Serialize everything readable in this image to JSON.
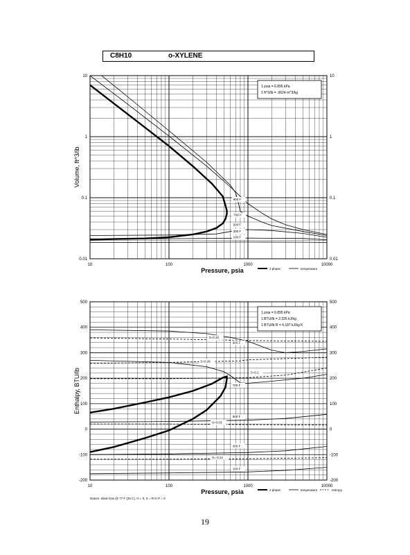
{
  "header": {
    "formula": "C8H10",
    "compound": "o-XYLENE"
  },
  "page_number": "19",
  "chart_data": [
    {
      "type": "line",
      "x_scale": "log",
      "y_scale": "log",
      "xlabel": "Pressure,  psia",
      "ylabel": "Volume, ft^3/lb",
      "xlim": [
        10,
        10000
      ],
      "ylim": [
        0.01,
        10
      ],
      "x_ticks": [
        "10",
        "100",
        "1000",
        "10000"
      ],
      "y_ticks": [
        "0.01",
        "0.1",
        "1",
        "10"
      ],
      "grid": true,
      "info_box": [
        "1 psia = 6.895 kPa",
        "1 ft^3/lb = .0624 m^3/kg"
      ],
      "legend": [
        {
          "label": "2 phase",
          "style": "thick"
        },
        {
          "label": "temperature",
          "style": "thin"
        }
      ],
      "series": [
        {
          "name": "2 phase",
          "kind": "thick",
          "x": [
            10,
            20,
            50,
            100,
            200,
            350,
            480,
            540,
            541,
            520,
            480,
            400,
            300,
            200,
            100,
            50,
            20,
            10
          ],
          "y": [
            7.0,
            3.5,
            1.4,
            0.7,
            0.33,
            0.17,
            0.105,
            0.062,
            0.055,
            0.045,
            0.038,
            0.032,
            0.028,
            0.025,
            0.0225,
            0.0215,
            0.021,
            0.0205
          ]
        },
        {
          "name": "900 F",
          "x": [
            10,
            30,
            100,
            300,
            600,
            800,
            1000,
            1500,
            2000,
            3000,
            5000,
            10000
          ],
          "y": [
            10,
            3.4,
            1.02,
            0.33,
            0.15,
            0.105,
            0.08,
            0.056,
            0.045,
            0.036,
            0.03,
            0.025
          ]
        },
        {
          "name": "700 F",
          "x": [
            14,
            30,
            100,
            300,
            600,
            700,
            760,
            800,
            1000,
            1500,
            2000,
            5000,
            10000
          ],
          "y": [
            10,
            4.5,
            1.25,
            0.38,
            0.16,
            0.12,
            0.08,
            0.06,
            0.05,
            0.04,
            0.035,
            0.028,
            0.024
          ]
        },
        {
          "name": "500 F",
          "x": [
            10,
            100,
            400,
            600,
            1000,
            2000,
            5000,
            10000
          ],
          "y": [
            0.024,
            0.0245,
            0.0255,
            0.028,
            0.03,
            0.029,
            0.026,
            0.0225
          ]
        },
        {
          "name": "300 F",
          "x": [
            10,
            100,
            1000,
            5000,
            10000
          ],
          "y": [
            0.0212,
            0.0213,
            0.0218,
            0.0215,
            0.0205
          ]
        },
        {
          "name": "100 F",
          "x": [
            10,
            100,
            1000,
            5000,
            10000
          ],
          "y": [
            0.0185,
            0.0186,
            0.0188,
            0.0187,
            0.0185
          ]
        }
      ]
    },
    {
      "type": "line",
      "x_scale": "log",
      "y_scale": "linear",
      "xlabel": "Pressure,  psia",
      "ylabel": "Enthalpy, BTU/lb",
      "xlim": [
        10,
        10000
      ],
      "ylim": [
        -200,
        500
      ],
      "x_ticks": [
        "10",
        "100",
        "1000",
        "10000"
      ],
      "y_ticks": [
        "-200",
        "-100",
        "0",
        "100",
        "200",
        "300",
        "400",
        "500"
      ],
      "grid": true,
      "info_box": [
        "1 psia = 6.895 kPa",
        "1 BTU/lb = 2.326 kJ/kg",
        "1 BTU/lb R = 4.187 kJ/kg K"
      ],
      "datum": "Datum: Ideal Gas @ 77 F (25 C),  H = 0,  S = R ln P = 0",
      "legend": [
        {
          "label": "2 phase",
          "style": "thick"
        },
        {
          "label": "temperature",
          "style": "thin"
        },
        {
          "label": "entropy",
          "style": "dashed"
        }
      ],
      "series": [
        {
          "name": "2 phase",
          "kind": "thick",
          "x": [
            10,
            20,
            50,
            100,
            200,
            350,
            480,
            540,
            541,
            520,
            450,
            300,
            200,
            100,
            50,
            20,
            10
          ],
          "y": [
            65,
            80,
            105,
            125,
            150,
            178,
            202,
            207,
            198,
            165,
            130,
            75,
            40,
            -5,
            -35,
            -70,
            -90
          ]
        },
        {
          "name": "900 F",
          "x": [
            10,
            100,
            300,
            600,
            1000,
            2000,
            3000,
            5000,
            10000
          ],
          "y": [
            390,
            385,
            375,
            360,
            345,
            310,
            300,
            305,
            315
          ]
        },
        {
          "name": "700 F",
          "x": [
            10,
            100,
            300,
            500,
            600,
            700,
            800,
            1000,
            2000,
            5000,
            10000
          ],
          "y": [
            270,
            262,
            245,
            225,
            210,
            195,
            182,
            180,
            188,
            200,
            215
          ]
        },
        {
          "name": "500 F",
          "x": [
            10,
            100,
            1000,
            3000,
            10000
          ],
          "y": [
            28,
            30,
            35,
            42,
            58
          ]
        },
        {
          "name": "300 F",
          "x": [
            10,
            100,
            1000,
            3000,
            10000
          ],
          "y": [
            -100,
            -97,
            -92,
            -85,
            -68
          ]
        },
        {
          "name": "100 F",
          "x": [
            10,
            100,
            1000,
            3000,
            10000
          ],
          "y": [
            -175,
            -172,
            -168,
            -162,
            -150
          ]
        },
        {
          "name": "S=0.32",
          "kind": "dashed",
          "x": [
            10,
            100,
            500,
            1000,
            3000,
            10000
          ],
          "y": [
            358,
            354,
            350,
            348,
            346,
            345
          ]
        },
        {
          "name": "S=0.26",
          "kind": "dashed",
          "x": [
            10,
            100,
            400,
            800,
            1000,
            10000
          ],
          "y": [
            258,
            262,
            266,
            268,
            272,
            282
          ]
        },
        {
          "name": "S=0.2",
          "kind": "dashed",
          "x": [
            10,
            100,
            1000,
            3000,
            10000
          ],
          "y": [
            198,
            198,
            202,
            212,
            240
          ]
        },
        {
          "name": "S=0.03",
          "kind": "dashed",
          "x": [
            10,
            100,
            1000,
            10000
          ],
          "y": [
            20,
            20,
            18,
            16
          ]
        },
        {
          "name": "S=-0.14",
          "kind": "dashed",
          "x": [
            10,
            100,
            1000,
            10000
          ],
          "y": [
            -118,
            -118,
            -116,
            -112
          ]
        }
      ],
      "label_positions": [
        {
          "text": "S=0.32",
          "x": 320,
          "y": 355
        },
        {
          "text": "900 F",
          "x": 640,
          "y": 335
        },
        {
          "text": "S=0.26",
          "x": 250,
          "y": 262
        },
        {
          "text": "S=0.2",
          "x": 1080,
          "y": 218
        },
        {
          "text": "700 F",
          "x": 640,
          "y": 168
        },
        {
          "text": "S=0.03",
          "x": 350,
          "y": 22
        },
        {
          "text": "500 F",
          "x": 640,
          "y": 45
        },
        {
          "text": "300 F",
          "x": 640,
          "y": -70
        },
        {
          "text": "S=-0.14",
          "x": 350,
          "y": -115
        },
        {
          "text": "100 F",
          "x": 640,
          "y": -160
        }
      ]
    }
  ],
  "top_labels": [
    {
      "text": "900 F",
      "x": 650,
      "y": 0.09
    },
    {
      "text": "700 F",
      "x": 660,
      "y": 0.05
    },
    {
      "text": "500 F",
      "x": 650,
      "y": 0.0345
    },
    {
      "text": "300 F",
      "x": 650,
      "y": 0.027
    },
    {
      "text": "100 F",
      "x": 650,
      "y": 0.0215
    }
  ]
}
